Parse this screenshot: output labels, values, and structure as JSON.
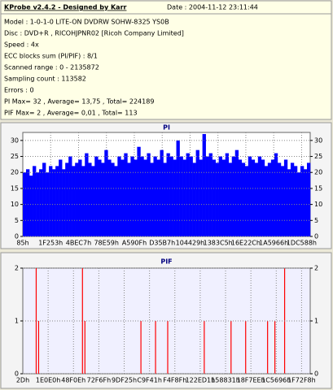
{
  "header": {
    "title": "KProbe v2.4.2 - Designed by Karr",
    "date": "Date : 2004-11-12 23:11:44",
    "lines": [
      "Model : 1-0-1-0 LITE-ON DVDRW SOHW-8325  YS0B",
      "Disc : DVD+R , RICOHJPNR02 [Ricoh Company Limited]",
      "Speed : 4x",
      "ECC blocks sum (PI/PIF) : 8/1",
      "Scanned range : 0 - 2135872",
      "Sampling count : 113582",
      "Errors : 0",
      "PI Max= 32 , Average= 13,75 , Total= 224189",
      "PIF Max= 2 , Average= 0,01 , Total= 113"
    ]
  },
  "chart_data": [
    {
      "type": "bar",
      "title": "PI",
      "color": "#0000ff",
      "grid": true,
      "x_labels": [
        "85h",
        "1F253h",
        "4BEC7h",
        "78E59h",
        "A590Fh",
        "D35B7h",
        "104429h",
        "1383C5h",
        "16E22Ch",
        "1A5966h",
        "1DC588h"
      ],
      "ylim": [
        0,
        32.5
      ],
      "yticks": [
        0,
        5,
        10,
        15,
        20,
        25,
        30
      ],
      "values": [
        20,
        21,
        19,
        22,
        20,
        21,
        23,
        20,
        22,
        21,
        22,
        24,
        21,
        23,
        25,
        22,
        23,
        24,
        22,
        26,
        23,
        22,
        25,
        24,
        23,
        27,
        24,
        23,
        22,
        25,
        24,
        26,
        23,
        25,
        24,
        28,
        25,
        24,
        26,
        23,
        25,
        24,
        27,
        23,
        26,
        25,
        24,
        30,
        25,
        24,
        26,
        25,
        23,
        27,
        24,
        32,
        25,
        26,
        24,
        23,
        25,
        24,
        26,
        23,
        25,
        27,
        24,
        23,
        22,
        25,
        24,
        23,
        25,
        24,
        22,
        23,
        24,
        26,
        23,
        22,
        24,
        21,
        23,
        22,
        20,
        22,
        21,
        23
      ]
    },
    {
      "type": "stem",
      "title": "PIF",
      "color": "#ff0000",
      "grid": true,
      "x_labels": [
        "2Dh",
        "1E0E0h",
        "48F0Eh",
        "72F6Fh",
        "9DF25h",
        "C9F41h",
        "F4F8Fh",
        "122ED1h",
        "158831h",
        "18F7EEh",
        "1C5696h",
        "1F72F8h"
      ],
      "ylim": [
        0,
        2
      ],
      "yticks": [
        0,
        1,
        2
      ],
      "values": [
        0,
        0,
        0,
        0,
        0,
        2,
        1,
        0,
        0,
        0,
        0,
        0,
        0,
        0,
        0,
        0,
        0,
        0,
        0,
        0,
        0,
        0,
        0,
        0,
        2,
        1,
        0,
        0,
        0,
        0,
        0,
        0,
        0,
        0,
        0,
        0,
        0,
        0,
        0,
        0,
        0,
        0,
        0,
        0,
        0,
        0,
        0,
        0,
        1,
        0,
        0,
        0,
        0,
        0,
        1,
        0,
        0,
        0,
        0,
        1,
        0,
        0,
        0,
        0,
        0,
        0,
        0,
        0,
        0,
        0,
        0,
        0,
        0,
        0,
        1,
        0,
        0,
        0,
        0,
        0,
        0,
        0,
        0,
        0,
        0,
        1,
        0,
        0,
        0,
        0,
        0,
        1,
        0,
        0,
        0,
        0,
        0,
        0,
        0,
        0,
        1,
        0,
        0,
        1,
        0,
        0,
        0,
        2,
        0,
        0,
        0,
        0,
        0,
        0,
        0,
        0,
        0,
        0
      ]
    }
  ]
}
